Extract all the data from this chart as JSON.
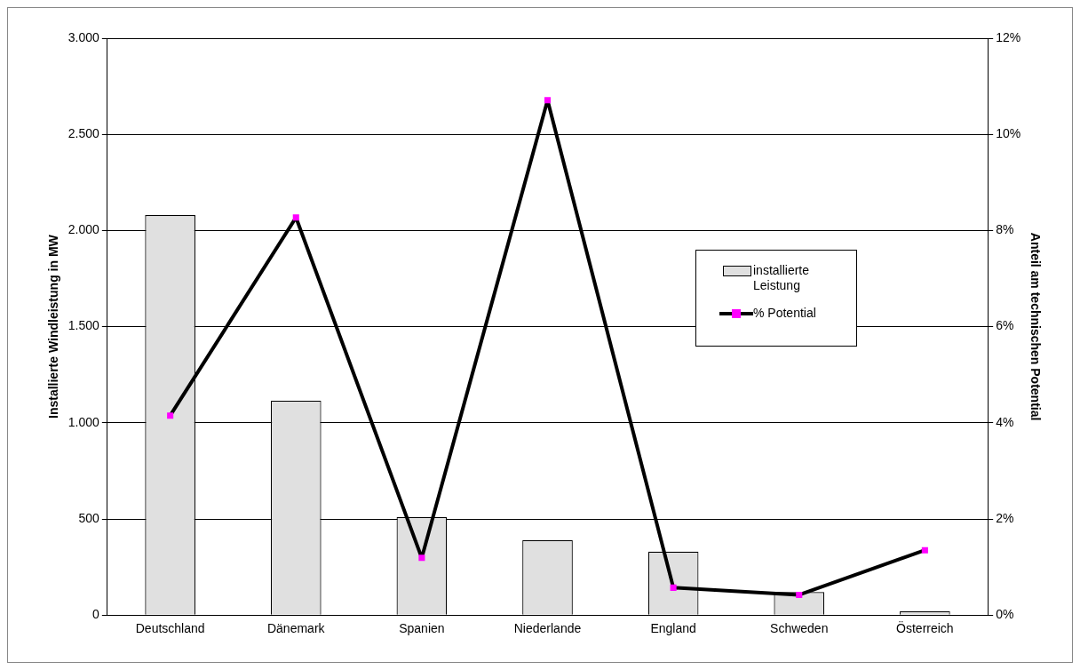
{
  "chart_data": {
    "type": "bar",
    "categories": [
      "Deutschland",
      "Dänemark",
      "Spanien",
      "Niederlande",
      "England",
      "Schweden",
      "Österreich"
    ],
    "series": [
      {
        "name": "installierte Leistung",
        "color": "#e0e0e0",
        "values": [
          2080,
          1115,
          510,
          390,
          330,
          120,
          20
        ]
      },
      {
        "name": "% Potential",
        "type": "line",
        "axis": "y2",
        "color": "#000000",
        "colors": [
          "#ff00ff",
          "#ff00ff",
          "#ff00ff",
          "#ff00ff",
          "#ff00ff",
          "#ff00ff",
          "#ff00ff"
        ],
        "values": [
          4.15,
          8.27,
          1.19,
          10.71,
          0.57,
          0.42,
          1.35
        ]
      }
    ],
    "ylabel": "Installierte Windleistung in MW",
    "y2label": "Anteil am technischen Potential",
    "ylim": [
      0,
      3000
    ],
    "yticks": [
      {
        "value": 0,
        "label": "0"
      },
      {
        "value": 500,
        "label": "500"
      },
      {
        "value": 1000,
        "label": "1.000"
      },
      {
        "value": 1500,
        "label": "1.500"
      },
      {
        "value": 2000,
        "label": "2.000"
      },
      {
        "value": 2500,
        "label": "2.500"
      },
      {
        "value": 3000,
        "label": "3.000"
      }
    ],
    "y2lim": [
      0,
      12
    ],
    "y2ticks": [
      {
        "value": 0,
        "label": "0%"
      },
      {
        "value": 2,
        "label": "2%"
      },
      {
        "value": 4,
        "label": "4%"
      },
      {
        "value": 6,
        "label": "6%"
      },
      {
        "value": 8,
        "label": "8%"
      },
      {
        "value": 10,
        "label": "10%"
      },
      {
        "value": 12,
        "label": "12%"
      }
    ],
    "grid": "y",
    "legend": "right",
    "marker": "square",
    "line_style": "solid"
  }
}
